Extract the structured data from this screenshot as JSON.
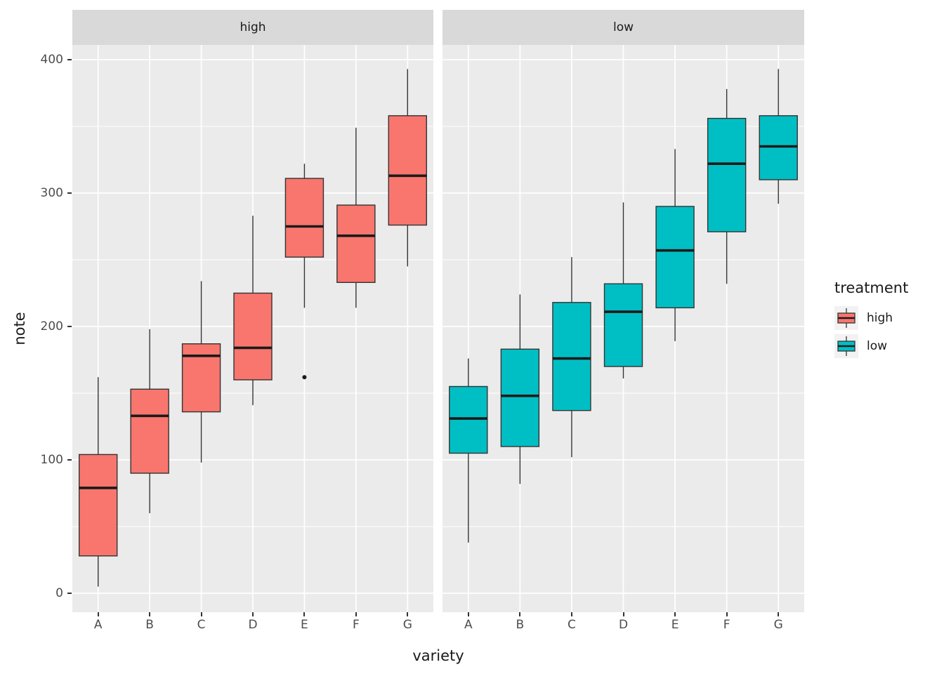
{
  "figure": {
    "background": "#FFFFFF",
    "panel_background": "#EBEBEB",
    "strip_background": "#D9D9D9",
    "grid_color": "#FFFFFF",
    "axis_text_color": "#4D4D4D",
    "box_outline_color": "#333333",
    "median_color": "#1A1A1A"
  },
  "axes": {
    "x_title": "variety",
    "y_title": "note",
    "y_ticks": [
      0,
      100,
      200,
      300,
      400
    ],
    "x_ticks": [
      "A",
      "B",
      "C",
      "D",
      "E",
      "F",
      "G"
    ]
  },
  "legend": {
    "title": "treatment",
    "items": [
      {
        "label": "high",
        "color": "#F8766D"
      },
      {
        "label": "low",
        "color": "#00BFC4"
      }
    ]
  },
  "chart_data": {
    "type": "boxplot",
    "title": "",
    "xlabel": "variety",
    "ylabel": "note",
    "ylim": [
      0,
      400
    ],
    "facet_variable": "treatment",
    "categories": [
      "A",
      "B",
      "C",
      "D",
      "E",
      "F",
      "G"
    ],
    "facets": [
      {
        "label": "high",
        "color": "#F8766D",
        "boxes": [
          {
            "variety": "A",
            "min": 5,
            "q1": 28,
            "median": 79,
            "q3": 104,
            "max": 162,
            "outliers": []
          },
          {
            "variety": "B",
            "min": 60,
            "q1": 90,
            "median": 133,
            "q3": 153,
            "max": 198,
            "outliers": []
          },
          {
            "variety": "C",
            "min": 98,
            "q1": 136,
            "median": 178,
            "q3": 187,
            "max": 234,
            "outliers": []
          },
          {
            "variety": "D",
            "min": 141,
            "q1": 160,
            "median": 184,
            "q3": 225,
            "max": 283,
            "outliers": []
          },
          {
            "variety": "E",
            "min": 214,
            "q1": 252,
            "median": 275,
            "q3": 311,
            "max": 322,
            "outliers": [
              162
            ]
          },
          {
            "variety": "F",
            "min": 214,
            "q1": 233,
            "median": 268,
            "q3": 291,
            "max": 349,
            "outliers": []
          },
          {
            "variety": "G",
            "min": 245,
            "q1": 276,
            "median": 313,
            "q3": 358,
            "max": 393,
            "outliers": []
          }
        ]
      },
      {
        "label": "low",
        "color": "#00BFC4",
        "boxes": [
          {
            "variety": "A",
            "min": 38,
            "q1": 105,
            "median": 131,
            "q3": 155,
            "max": 176,
            "outliers": []
          },
          {
            "variety": "B",
            "min": 82,
            "q1": 110,
            "median": 148,
            "q3": 183,
            "max": 224,
            "outliers": []
          },
          {
            "variety": "C",
            "min": 102,
            "q1": 137,
            "median": 176,
            "q3": 218,
            "max": 252,
            "outliers": []
          },
          {
            "variety": "D",
            "min": 161,
            "q1": 170,
            "median": 211,
            "q3": 232,
            "max": 293,
            "outliers": []
          },
          {
            "variety": "E",
            "min": 189,
            "q1": 214,
            "median": 257,
            "q3": 290,
            "max": 333,
            "outliers": []
          },
          {
            "variety": "F",
            "min": 232,
            "q1": 271,
            "median": 322,
            "q3": 356,
            "max": 378,
            "outliers": []
          },
          {
            "variety": "G",
            "min": 292,
            "q1": 310,
            "median": 335,
            "q3": 358,
            "max": 393,
            "outliers": []
          }
        ]
      }
    ]
  }
}
